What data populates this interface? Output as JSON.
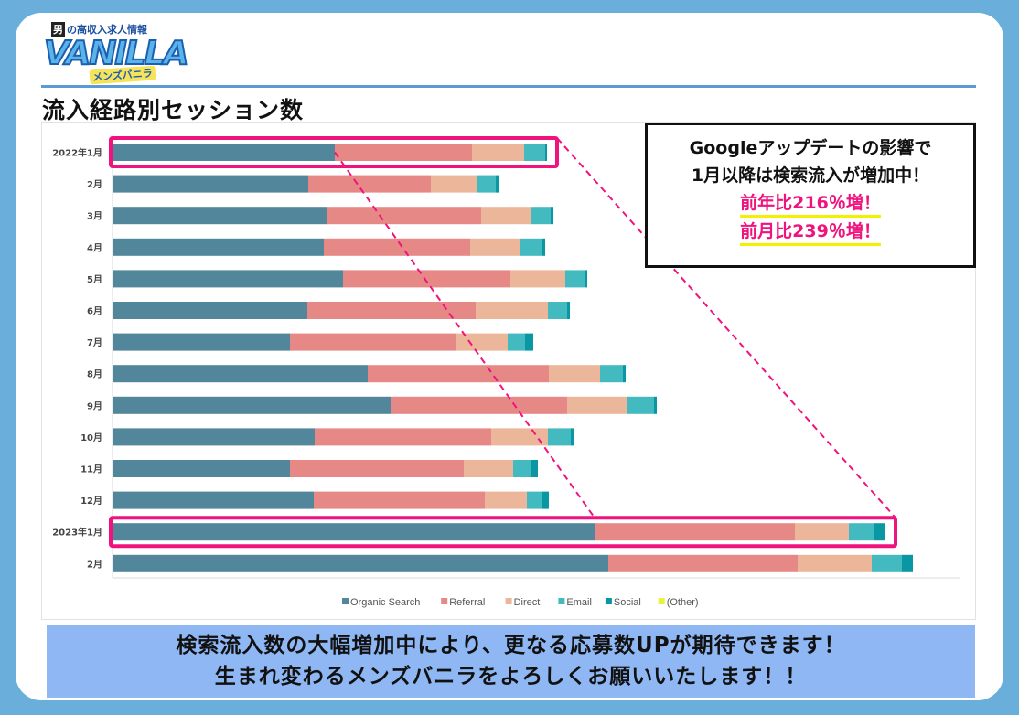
{
  "logo": {
    "top": "の高収入求人情報",
    "man": "男",
    "main": "VANILLA",
    "sub": "メンズバニラ"
  },
  "title": "流入経路別セッション数",
  "callout": {
    "line1": "Googleアップデートの影響で",
    "line2": "1月以降は検索流入が増加中！",
    "highlight1": "前年比216％増！",
    "highlight2": "前月比239％増！"
  },
  "banner": {
    "line1": "検索流入数の大幅増加中により、更なる応募数UPが期待できます！",
    "line2": "生まれ変わるメンズバニラをよろしくお願いいたします！！"
  },
  "colors": {
    "highlight_box": "#f0127d",
    "dashed_line": "#f0127d"
  },
  "chart_data": {
    "type": "bar",
    "orientation": "horizontal",
    "stacked": true,
    "title": "流入経路別セッション数",
    "xlabel": "",
    "ylabel": "",
    "value_units": "relative (no axis shown)",
    "xlim": [
      0,
      930
    ],
    "grid": false,
    "legend_position": "bottom",
    "categories": [
      "2022年1月",
      "2月",
      "3月",
      "4月",
      "5月",
      "6月",
      "7月",
      "8月",
      "9月",
      "10月",
      "11月",
      "12月",
      "2023年1月",
      "2月"
    ],
    "highlighted_categories": [
      "2022年1月",
      "2023年1月"
    ],
    "series": [
      {
        "name": "Organic Search",
        "color": "#52869b",
        "values": [
          242,
          213,
          233,
          230,
          251,
          212,
          193,
          278,
          303,
          220,
          193,
          219,
          526,
          541
        ]
      },
      {
        "name": "Referral",
        "color": "#e68886",
        "values": [
          150,
          134,
          169,
          160,
          183,
          184,
          182,
          198,
          193,
          193,
          190,
          187,
          219,
          207
        ]
      },
      {
        "name": "Direct",
        "color": "#ecb69b",
        "values": [
          57,
          51,
          55,
          55,
          60,
          79,
          56,
          56,
          66,
          62,
          54,
          46,
          59,
          81
        ]
      },
      {
        "name": "Email",
        "color": "#43bac0",
        "values": [
          23,
          20,
          21,
          24,
          21,
          21,
          19,
          25,
          29,
          25,
          19,
          16,
          28,
          33
        ]
      },
      {
        "name": "Social",
        "color": "#0a97a4",
        "values": [
          2,
          4,
          3,
          3,
          3,
          3,
          9,
          3,
          3,
          3,
          8,
          8,
          12,
          12
        ]
      },
      {
        "name": "(Other)",
        "color": "#eaf23a",
        "values": [
          0,
          0,
          0,
          0,
          0,
          0,
          0,
          0,
          0,
          0,
          0,
          0,
          0,
          0
        ]
      }
    ]
  }
}
